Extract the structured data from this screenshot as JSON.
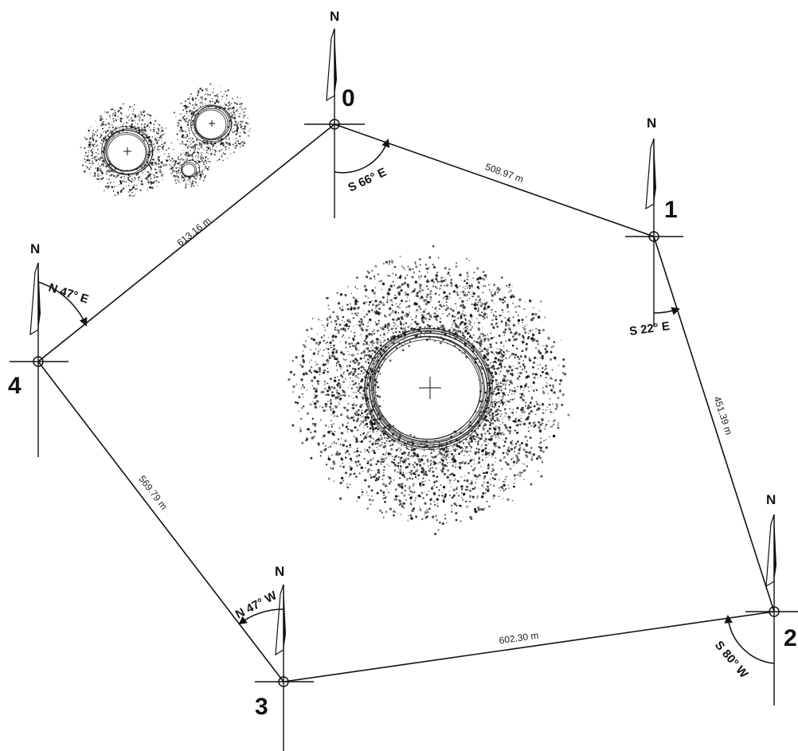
{
  "survey": {
    "stations": [
      {
        "id": "0",
        "label": "0",
        "north": "N"
      },
      {
        "id": "1",
        "label": "1",
        "north": "N"
      },
      {
        "id": "2",
        "label": "2",
        "north": "N"
      },
      {
        "id": "3",
        "label": "3",
        "north": "N"
      },
      {
        "id": "4",
        "label": "4",
        "north": "N"
      }
    ],
    "legs": [
      {
        "from": "0",
        "to": "1",
        "distance": "508.97 m",
        "bearing": "S 66° E"
      },
      {
        "from": "1",
        "to": "2",
        "distance": "451.39 m",
        "bearing": "S 22° E"
      },
      {
        "from": "2",
        "to": "3",
        "distance": "602.30 m",
        "bearing": "S 80° W"
      },
      {
        "from": "3",
        "to": "4",
        "distance": "569.79 m",
        "bearing": "N 47° W"
      },
      {
        "from": "4",
        "to": "0",
        "distance": "613.16 m",
        "bearing": "N 47° E"
      }
    ]
  },
  "colors": {
    "ink": "#111111",
    "background": "#ffffff"
  }
}
